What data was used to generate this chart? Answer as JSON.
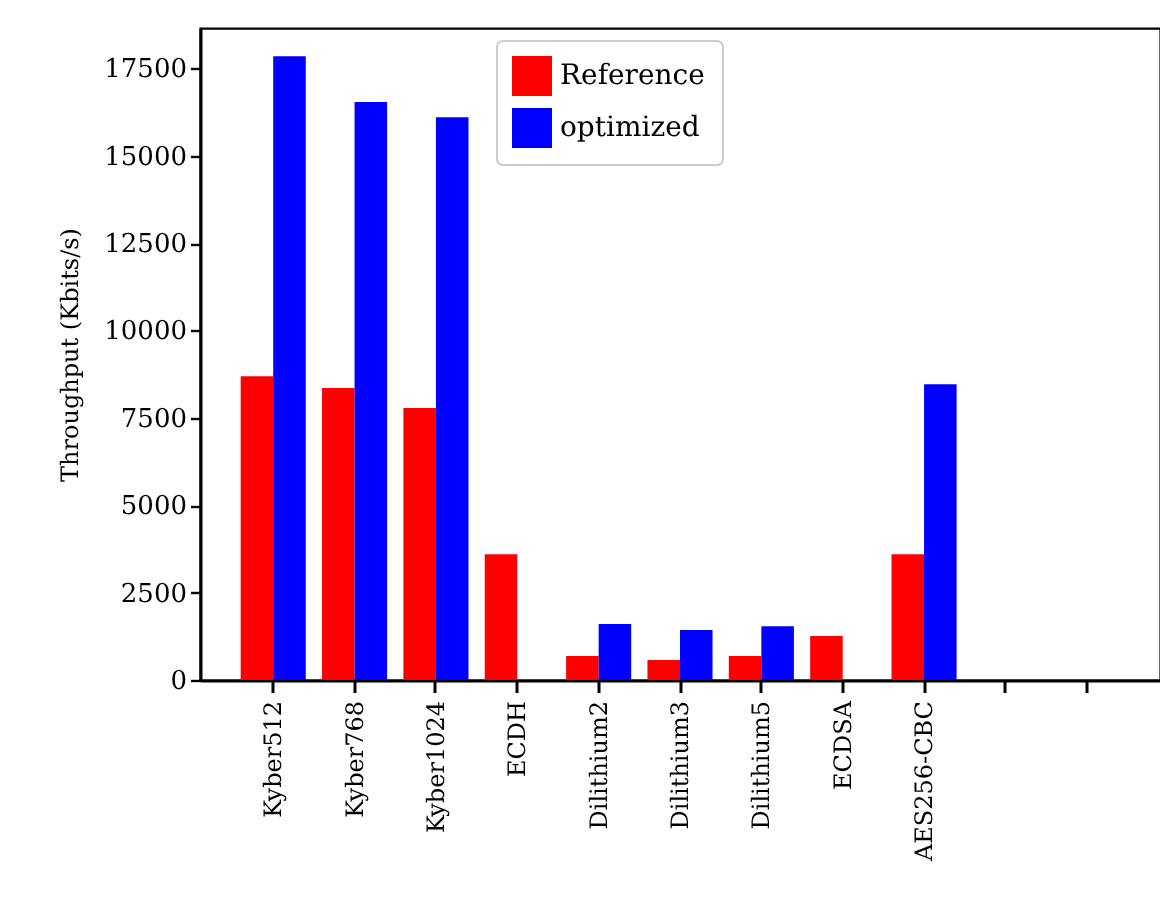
{
  "chart_data": {
    "type": "bar",
    "ylabel": "Throughput (Kbits/s)",
    "categories": [
      "Kyber512",
      "Kyber768",
      "Kyber1024",
      "ECDH",
      "Dilithium2",
      "Dilithium3",
      "Dilithium5",
      "ECDSA",
      "AES256-CBC",
      null,
      null
    ],
    "series": [
      {
        "name": "Reference",
        "color": "#ff0000",
        "values": [
          8690,
          8350,
          7780,
          3600,
          690,
          570,
          690,
          1260,
          3600,
          null,
          null
        ]
      },
      {
        "name": "optimized",
        "color": "#0000ff",
        "values": [
          17840,
          16530,
          16100,
          null,
          1600,
          1430,
          1540,
          null,
          8460,
          null,
          null
        ]
      }
    ],
    "ylim": [
      0,
      18650
    ],
    "yticks": [
      0,
      2500,
      5000,
      7500,
      10000,
      12500,
      15000,
      17500
    ],
    "grid": false,
    "legend": "top"
  }
}
